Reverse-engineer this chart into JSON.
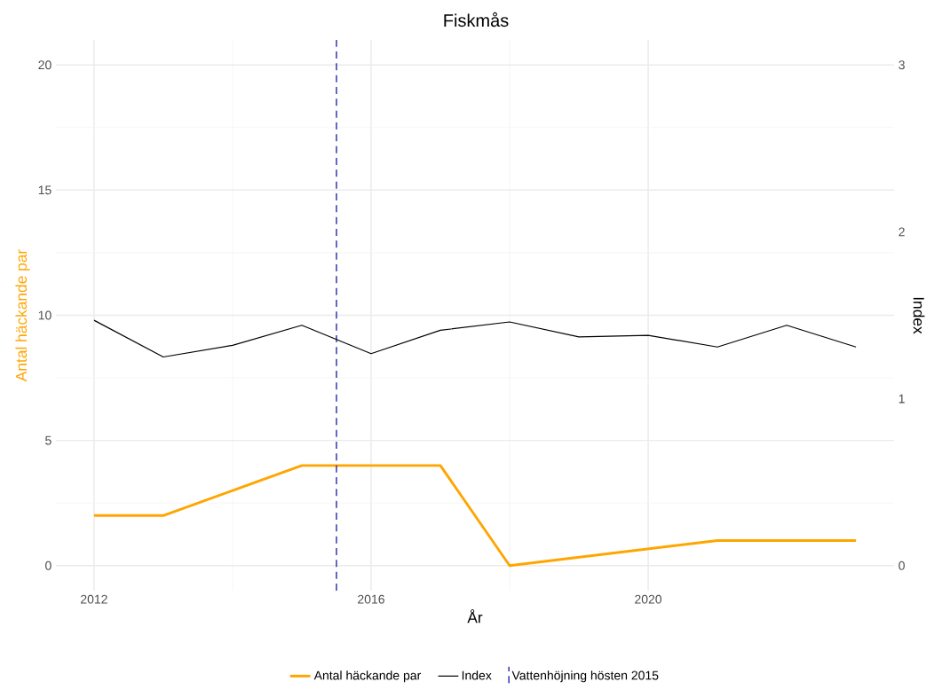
{
  "chart_data": {
    "type": "line",
    "title": "Fiskmås",
    "xlabel": "År",
    "ylabel": "Antal häckande par",
    "y2label": "Index",
    "series": [
      {
        "name": "Antal häckande par",
        "color": "#ffa500",
        "x": [
          2012,
          2013,
          2014,
          2015,
          2016,
          2017,
          2018,
          2021,
          2022,
          2023
        ],
        "values": [
          2,
          2,
          3,
          4,
          4,
          4,
          0,
          1,
          1,
          1
        ]
      },
      {
        "name": "Index",
        "color": "#000000",
        "axis": "y2",
        "x": [
          2012,
          2013,
          2014,
          2015,
          2016,
          2017,
          2018,
          2019,
          2020,
          2021,
          2022,
          2023
        ],
        "values": [
          1.47,
          1.25,
          1.32,
          1.44,
          1.27,
          1.41,
          1.46,
          1.37,
          1.38,
          1.31,
          1.44,
          1.31
        ]
      }
    ],
    "xlim": [
      2011.45,
      2023.55
    ],
    "xticks": [
      2012,
      2016,
      2020
    ],
    "ylim": [
      -1,
      21
    ],
    "yticks": [
      0,
      5,
      10,
      15,
      20
    ],
    "y2lim": [
      -0.15,
      3.15
    ],
    "y2ticks": [
      0,
      1,
      2,
      3
    ],
    "ref_lines": [
      {
        "axis": "x",
        "value": 2015.5,
        "label": "Vattenhöjning hösten 2015",
        "color": "#1a1aa6",
        "line_style": "dashed"
      }
    ],
    "grid": true,
    "legend": "bottom",
    "marker": "none",
    "line_style": "solid"
  }
}
